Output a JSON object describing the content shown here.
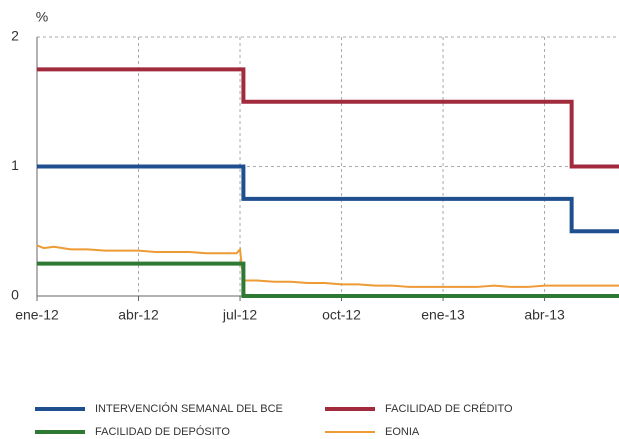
{
  "chart_data": {
    "type": "line",
    "unit": "%",
    "xlim": [
      0,
      17.2
    ],
    "xticks": [
      {
        "value": 0,
        "label": "ene-12"
      },
      {
        "value": 3,
        "label": "abr-12"
      },
      {
        "value": 6,
        "label": "jul-12"
      },
      {
        "value": 9,
        "label": "oct-12"
      },
      {
        "value": 12,
        "label": "ene-13"
      },
      {
        "value": 15,
        "label": "abr-13"
      }
    ],
    "ylim": [
      0,
      2
    ],
    "yticks": [
      0,
      1,
      2
    ],
    "grid": true,
    "series": [
      {
        "name": "INTERVENCIÓN SEMANAL DEL BCE",
        "color": "#1f4f8f",
        "x": [
          0,
          6.1,
          6.1,
          15.8,
          15.8,
          17.2
        ],
        "values": [
          1,
          1,
          0.75,
          0.75,
          0.5,
          0.5
        ]
      },
      {
        "name": "FACILIDAD DE CRÉDITO",
        "color": "#a12b3c",
        "x": [
          0,
          6.1,
          6.1,
          15.8,
          15.8,
          17.2
        ],
        "values": [
          1.75,
          1.75,
          1.5,
          1.5,
          1,
          1
        ]
      },
      {
        "name": "FACILIDAD DE DEPÓSITO",
        "color": "#2e7a34",
        "x": [
          0,
          6.1,
          6.1,
          17.2
        ],
        "values": [
          0.25,
          0.25,
          0,
          0
        ]
      },
      {
        "name": "EONIA",
        "color": "#ee9a35",
        "x": [
          0,
          0.2,
          0.5,
          1,
          1.5,
          2,
          2.5,
          3,
          3.5,
          4,
          4.5,
          5,
          5.5,
          5.9,
          6.0,
          6.1,
          6.5,
          7,
          7.5,
          8,
          8.5,
          9,
          9.5,
          10,
          10.5,
          11,
          11.5,
          12,
          12.5,
          13,
          13.5,
          14,
          14.5,
          15,
          15.5,
          16,
          16.5,
          17.2
        ],
        "values": [
          0.39,
          0.37,
          0.38,
          0.36,
          0.36,
          0.35,
          0.35,
          0.35,
          0.34,
          0.34,
          0.34,
          0.33,
          0.33,
          0.33,
          0.36,
          0.12,
          0.12,
          0.11,
          0.11,
          0.1,
          0.1,
          0.09,
          0.09,
          0.08,
          0.08,
          0.07,
          0.07,
          0.07,
          0.07,
          0.07,
          0.08,
          0.07,
          0.07,
          0.08,
          0.08,
          0.08,
          0.08,
          0.08
        ]
      }
    ]
  }
}
